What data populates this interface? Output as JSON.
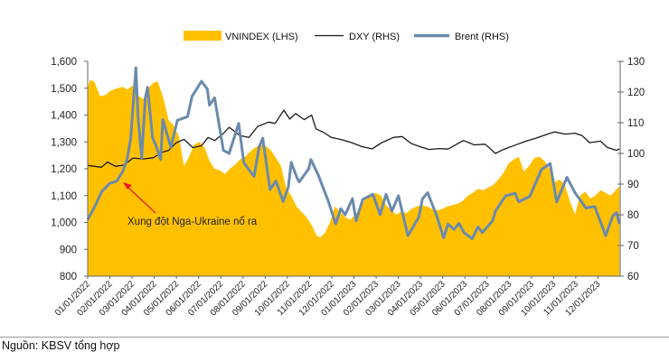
{
  "chart_data": {
    "type": "area+line",
    "legend": [
      "VNINDEX (LHS)",
      "DXY (RHS)",
      "Brent (RHS)"
    ],
    "legend_position": "top",
    "colors": {
      "VNINDEX": "#FFC000",
      "DXY": "#1A1A1A",
      "Brent": "#6A8AAD",
      "annotation": "#E81E1E"
    },
    "x_range": [
      "2022-01-01",
      "2024-01-01"
    ],
    "x_tick_labels": [
      "01/01/2022",
      "02/01/2022",
      "03/01/2022",
      "04/01/2022",
      "05/01/2022",
      "06/01/2022",
      "07/01/2022",
      "08/01/2022",
      "09/01/2022",
      "10/01/2022",
      "11/01/2022",
      "12/01/2022",
      "01/01/2023",
      "02/01/2023",
      "03/01/2023",
      "04/01/2023",
      "05/01/2023",
      "06/01/2023",
      "07/01/2023",
      "08/01/2023",
      "09/01/2023",
      "10/01/2023",
      "11/01/2023",
      "12/01/2023"
    ],
    "y_left": {
      "range": [
        800,
        1600
      ],
      "ticks": [
        "800",
        "900",
        "1,000",
        "1,100",
        "1,200",
        "1,300",
        "1,400",
        "1,500",
        "1,600"
      ]
    },
    "y_right": {
      "range": [
        60,
        130
      ],
      "ticks": [
        "60",
        "70",
        "80",
        "90",
        "100",
        "110",
        "120",
        "130"
      ]
    },
    "grid": false,
    "annotation": {
      "text": "Xung đột Nga-Ukraine nổ ra",
      "date": "2022-02-24",
      "value_right": 94.5
    },
    "series": [
      {
        "name": "VNINDEX (LHS)",
        "axis": "left",
        "kind": "area",
        "points": [
          [
            "2022-01-01",
            1500
          ],
          [
            "2022-01-04",
            1530
          ],
          [
            "2022-01-10",
            1525
          ],
          [
            "2022-01-18",
            1470
          ],
          [
            "2022-01-25",
            1475
          ],
          [
            "2022-02-01",
            1490
          ],
          [
            "2022-02-10",
            1500
          ],
          [
            "2022-02-18",
            1505
          ],
          [
            "2022-02-25",
            1495
          ],
          [
            "2022-03-03",
            1510
          ],
          [
            "2022-03-10",
            1475
          ],
          [
            "2022-03-18",
            1460
          ],
          [
            "2022-03-25",
            1500
          ],
          [
            "2022-04-01",
            1520
          ],
          [
            "2022-04-07",
            1525
          ],
          [
            "2022-04-15",
            1460
          ],
          [
            "2022-04-22",
            1380
          ],
          [
            "2022-04-28",
            1365
          ],
          [
            "2022-05-06",
            1320
          ],
          [
            "2022-05-13",
            1210
          ],
          [
            "2022-05-20",
            1245
          ],
          [
            "2022-05-27",
            1290
          ],
          [
            "2022-06-03",
            1300
          ],
          [
            "2022-06-10",
            1280
          ],
          [
            "2022-06-17",
            1230
          ],
          [
            "2022-06-24",
            1200
          ],
          [
            "2022-07-01",
            1195
          ],
          [
            "2022-07-08",
            1180
          ],
          [
            "2022-07-15",
            1200
          ],
          [
            "2022-07-22",
            1215
          ],
          [
            "2022-07-29",
            1235
          ],
          [
            "2022-08-05",
            1245
          ],
          [
            "2022-08-12",
            1265
          ],
          [
            "2022-08-19",
            1280
          ],
          [
            "2022-08-26",
            1290
          ],
          [
            "2022-09-02",
            1285
          ],
          [
            "2022-09-09",
            1270
          ],
          [
            "2022-09-16",
            1240
          ],
          [
            "2022-09-23",
            1210
          ],
          [
            "2022-09-30",
            1130
          ],
          [
            "2022-10-07",
            1100
          ],
          [
            "2022-10-14",
            1060
          ],
          [
            "2022-10-21",
            1040
          ],
          [
            "2022-10-28",
            1020
          ],
          [
            "2022-11-04",
            990
          ],
          [
            "2022-11-11",
            950
          ],
          [
            "2022-11-16",
            945
          ],
          [
            "2022-11-22",
            960
          ],
          [
            "2022-11-29",
            1000
          ],
          [
            "2022-12-06",
            1060
          ],
          [
            "2022-12-13",
            1040
          ],
          [
            "2022-12-20",
            1020
          ],
          [
            "2022-12-27",
            1010
          ],
          [
            "2023-01-03",
            1030
          ],
          [
            "2023-01-10",
            1055
          ],
          [
            "2023-01-17",
            1090
          ],
          [
            "2023-01-31",
            1110
          ],
          [
            "2023-02-07",
            1100
          ],
          [
            "2023-02-14",
            1065
          ],
          [
            "2023-02-21",
            1045
          ],
          [
            "2023-02-28",
            1030
          ],
          [
            "2023-03-07",
            1040
          ],
          [
            "2023-03-14",
            1035
          ],
          [
            "2023-03-21",
            1050
          ],
          [
            "2023-03-28",
            1060
          ],
          [
            "2023-04-04",
            1065
          ],
          [
            "2023-04-11",
            1060
          ],
          [
            "2023-04-18",
            1050
          ],
          [
            "2023-04-25",
            1045
          ],
          [
            "2023-05-02",
            1050
          ],
          [
            "2023-05-09",
            1060
          ],
          [
            "2023-05-16",
            1065
          ],
          [
            "2023-05-23",
            1070
          ],
          [
            "2023-05-30",
            1080
          ],
          [
            "2023-06-06",
            1100
          ],
          [
            "2023-06-13",
            1110
          ],
          [
            "2023-06-20",
            1125
          ],
          [
            "2023-06-27",
            1120
          ],
          [
            "2023-07-04",
            1130
          ],
          [
            "2023-07-11",
            1140
          ],
          [
            "2023-07-18",
            1160
          ],
          [
            "2023-07-25",
            1185
          ],
          [
            "2023-08-01",
            1220
          ],
          [
            "2023-08-08",
            1235
          ],
          [
            "2023-08-15",
            1245
          ],
          [
            "2023-08-22",
            1190
          ],
          [
            "2023-08-29",
            1210
          ],
          [
            "2023-09-05",
            1240
          ],
          [
            "2023-09-12",
            1245
          ],
          [
            "2023-09-19",
            1230
          ],
          [
            "2023-09-26",
            1200
          ],
          [
            "2023-10-03",
            1150
          ],
          [
            "2023-10-10",
            1160
          ],
          [
            "2023-10-17",
            1140
          ],
          [
            "2023-10-24",
            1080
          ],
          [
            "2023-10-31",
            1030
          ],
          [
            "2023-11-07",
            1100
          ],
          [
            "2023-11-14",
            1115
          ],
          [
            "2023-11-21",
            1090
          ],
          [
            "2023-11-28",
            1100
          ],
          [
            "2023-12-05",
            1120
          ],
          [
            "2023-12-12",
            1110
          ],
          [
            "2023-12-19",
            1100
          ],
          [
            "2023-12-26",
            1120
          ],
          [
            "2023-12-31",
            1135
          ]
        ]
      },
      {
        "name": "DXY (RHS)",
        "axis": "right",
        "kind": "line",
        "points": [
          [
            "2022-01-01",
            96.1
          ],
          [
            "2022-01-20",
            95.5
          ],
          [
            "2022-01-28",
            97.2
          ],
          [
            "2022-02-08",
            95.8
          ],
          [
            "2022-02-20",
            96.2
          ],
          [
            "2022-03-04",
            98.5
          ],
          [
            "2022-03-18",
            98.2
          ],
          [
            "2022-04-01",
            98.6
          ],
          [
            "2022-04-12",
            100.3
          ],
          [
            "2022-04-22",
            101.0
          ],
          [
            "2022-05-02",
            103.4
          ],
          [
            "2022-05-13",
            104.6
          ],
          [
            "2022-05-25",
            101.9
          ],
          [
            "2022-06-06",
            102.5
          ],
          [
            "2022-06-15",
            105.2
          ],
          [
            "2022-06-24",
            104.2
          ],
          [
            "2022-07-06",
            106.5
          ],
          [
            "2022-07-14",
            108.5
          ],
          [
            "2022-07-29",
            105.8
          ],
          [
            "2022-08-10",
            105.2
          ],
          [
            "2022-08-22",
            108.8
          ],
          [
            "2022-09-06",
            110.2
          ],
          [
            "2022-09-15",
            109.8
          ],
          [
            "2022-09-27",
            114.1
          ],
          [
            "2022-10-05",
            111.2
          ],
          [
            "2022-10-13",
            113.0
          ],
          [
            "2022-10-25",
            111.0
          ],
          [
            "2022-11-04",
            112.5
          ],
          [
            "2022-11-10",
            108.0
          ],
          [
            "2022-11-20",
            106.9
          ],
          [
            "2022-12-01",
            105.2
          ],
          [
            "2022-12-15",
            104.5
          ],
          [
            "2022-12-29",
            103.5
          ],
          [
            "2023-01-12",
            102.2
          ],
          [
            "2023-01-26",
            101.5
          ],
          [
            "2023-02-08",
            103.5
          ],
          [
            "2023-02-24",
            105.2
          ],
          [
            "2023-03-08",
            105.5
          ],
          [
            "2023-03-20",
            103.3
          ],
          [
            "2023-04-03",
            102.1
          ],
          [
            "2023-04-14",
            101.3
          ],
          [
            "2023-04-28",
            101.6
          ],
          [
            "2023-05-10",
            101.4
          ],
          [
            "2023-05-31",
            104.2
          ],
          [
            "2023-06-15",
            102.8
          ],
          [
            "2023-06-30",
            103.0
          ],
          [
            "2023-07-14",
            100.0
          ],
          [
            "2023-07-25",
            101.3
          ],
          [
            "2023-08-10",
            102.7
          ],
          [
            "2023-08-25",
            104.0
          ],
          [
            "2023-09-08",
            105.0
          ],
          [
            "2023-09-27",
            106.6
          ],
          [
            "2023-10-03",
            107.0
          ],
          [
            "2023-10-18",
            106.3
          ],
          [
            "2023-10-31",
            106.6
          ],
          [
            "2023-11-10",
            105.8
          ],
          [
            "2023-11-20",
            103.5
          ],
          [
            "2023-12-05",
            104.0
          ],
          [
            "2023-12-14",
            102.0
          ],
          [
            "2023-12-27",
            101.0
          ],
          [
            "2023-12-31",
            101.5
          ]
        ]
      },
      {
        "name": "Brent (RHS)",
        "axis": "right",
        "kind": "line",
        "points": [
          [
            "2022-01-01",
            78.4
          ],
          [
            "2022-01-12",
            83.3
          ],
          [
            "2022-01-20",
            87.5
          ],
          [
            "2022-01-31",
            90.2
          ],
          [
            "2022-02-10",
            91
          ],
          [
            "2022-02-18",
            94.1
          ],
          [
            "2022-02-24",
            98
          ],
          [
            "2022-03-01",
            105
          ],
          [
            "2022-03-08",
            127.9
          ],
          [
            "2022-03-11",
            112
          ],
          [
            "2022-03-16",
            98.5
          ],
          [
            "2022-03-21",
            118
          ],
          [
            "2022-03-24",
            121.6
          ],
          [
            "2022-03-31",
            105
          ],
          [
            "2022-04-04",
            103
          ],
          [
            "2022-04-11",
            98
          ],
          [
            "2022-04-14",
            111
          ],
          [
            "2022-04-25",
            102
          ],
          [
            "2022-05-04",
            110.8
          ],
          [
            "2022-05-18",
            112
          ],
          [
            "2022-05-24",
            118.6
          ],
          [
            "2022-06-06",
            123.5
          ],
          [
            "2022-06-14",
            121
          ],
          [
            "2022-06-17",
            115.7
          ],
          [
            "2022-06-24",
            118.1
          ],
          [
            "2022-07-06",
            101
          ],
          [
            "2022-07-14",
            100
          ],
          [
            "2022-07-27",
            109.8
          ],
          [
            "2022-08-03",
            97
          ],
          [
            "2022-08-12",
            94.1
          ],
          [
            "2022-08-17",
            92.5
          ],
          [
            "2022-08-24",
            102
          ],
          [
            "2022-08-29",
            105
          ],
          [
            "2022-09-08",
            88.2
          ],
          [
            "2022-09-16",
            91
          ],
          [
            "2022-09-26",
            84.3
          ],
          [
            "2022-10-03",
            89
          ],
          [
            "2022-10-07",
            97.1
          ],
          [
            "2022-10-15",
            92
          ],
          [
            "2022-10-18",
            90.7
          ],
          [
            "2022-10-31",
            95
          ],
          [
            "2022-11-03",
            98
          ],
          [
            "2022-11-13",
            93
          ],
          [
            "2022-11-27",
            84.3
          ],
          [
            "2022-12-07",
            77
          ],
          [
            "2022-12-14",
            82
          ],
          [
            "2022-12-20",
            80
          ],
          [
            "2022-12-30",
            85.3
          ],
          [
            "2023-01-04",
            78
          ],
          [
            "2023-01-13",
            85
          ],
          [
            "2023-01-27",
            86.7
          ],
          [
            "2023-02-06",
            80
          ],
          [
            "2023-02-14",
            86.7
          ],
          [
            "2023-02-22",
            81.2
          ],
          [
            "2023-03-03",
            86.2
          ],
          [
            "2023-03-16",
            73.2
          ],
          [
            "2023-03-31",
            79.2
          ],
          [
            "2023-04-05",
            85.2
          ],
          [
            "2023-04-12",
            87.2
          ],
          [
            "2023-04-24",
            80
          ],
          [
            "2023-05-04",
            72.5
          ],
          [
            "2023-05-10",
            77
          ],
          [
            "2023-05-18",
            75.2
          ],
          [
            "2023-05-25",
            77.2
          ],
          [
            "2023-06-01",
            74.2
          ],
          [
            "2023-06-12",
            72.2
          ],
          [
            "2023-06-20",
            76
          ],
          [
            "2023-06-26",
            74.2
          ],
          [
            "2023-07-10",
            78
          ],
          [
            "2023-07-14",
            81.2
          ],
          [
            "2023-07-28",
            86.2
          ],
          [
            "2023-08-10",
            87
          ],
          [
            "2023-08-15",
            84.2
          ],
          [
            "2023-08-30",
            86
          ],
          [
            "2023-09-05",
            89.2
          ],
          [
            "2023-09-15",
            94.7
          ],
          [
            "2023-09-27",
            96.7
          ],
          [
            "2023-10-06",
            84.2
          ],
          [
            "2023-10-20",
            92.2
          ],
          [
            "2023-10-31",
            87.2
          ],
          [
            "2023-11-15",
            82.2
          ],
          [
            "2023-11-27",
            82.7
          ],
          [
            "2023-12-12",
            73.2
          ],
          [
            "2023-12-22",
            79.7
          ],
          [
            "2023-12-27",
            80.7
          ],
          [
            "2023-12-31",
            77
          ]
        ]
      }
    ]
  },
  "source": "Nguồn: KBSV tổng hợp"
}
